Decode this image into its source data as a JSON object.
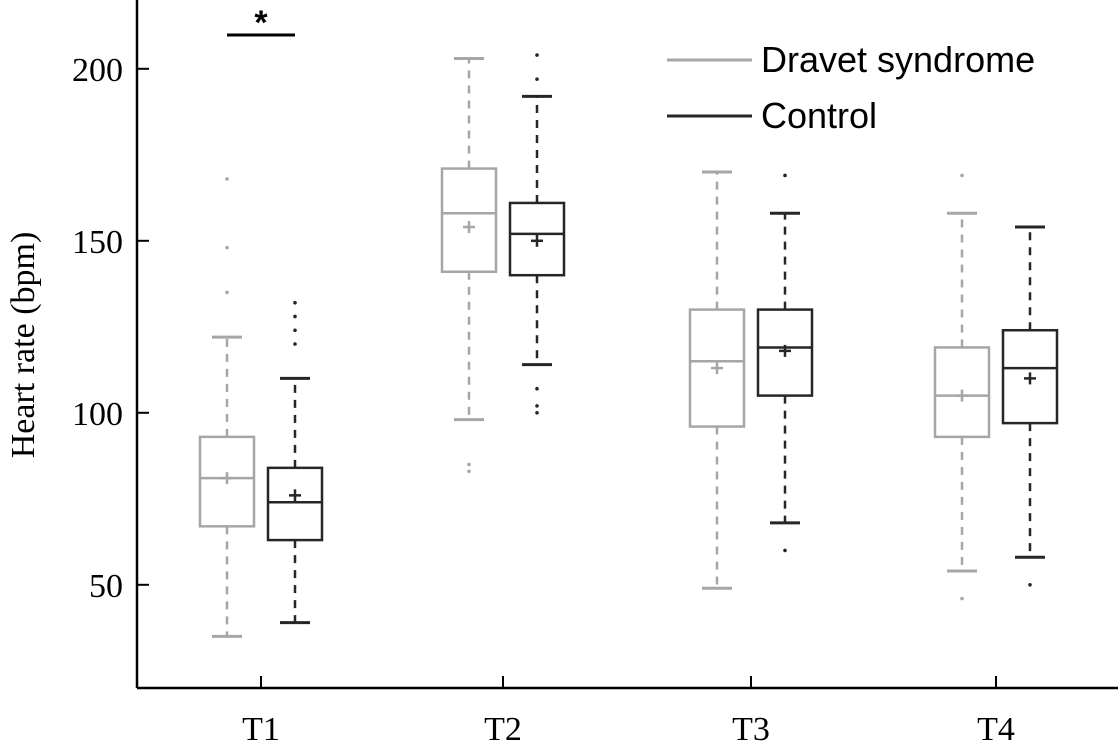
{
  "chart_data": {
    "type": "box",
    "categories": [
      "T1",
      "T2",
      "T3",
      "T4"
    ],
    "ylabel": "Heart rate (bpm)",
    "xlabel": "",
    "ylim": [
      20,
      220
    ],
    "yticks": [
      50,
      100,
      150,
      200
    ],
    "grid": false,
    "legend_position": "top-right",
    "significance": [
      {
        "category": "T1",
        "label": "*"
      }
    ],
    "series": [
      {
        "name": "Dravet syndrome",
        "color": "#a6a6a6",
        "boxes": [
          {
            "whisker_low": 35,
            "q1": 67,
            "median": 81,
            "q3": 93,
            "whisker_high": 122,
            "mean": 81,
            "outliers": [
              135,
              148,
              168
            ]
          },
          {
            "whisker_low": 98,
            "q1": 141,
            "median": 158,
            "q3": 171,
            "whisker_high": 203,
            "mean": 154,
            "outliers": [
              83,
              85
            ]
          },
          {
            "whisker_low": 49,
            "q1": 96,
            "median": 115,
            "q3": 130,
            "whisker_high": 170,
            "mean": 113,
            "outliers": []
          },
          {
            "whisker_low": 54,
            "q1": 93,
            "median": 105,
            "q3": 119,
            "whisker_high": 158,
            "mean": 105,
            "outliers": [
              46,
              169
            ]
          }
        ]
      },
      {
        "name": "Control",
        "color": "#262626",
        "boxes": [
          {
            "whisker_low": 39,
            "q1": 63,
            "median": 74,
            "q3": 84,
            "whisker_high": 110,
            "mean": 76,
            "outliers": [
              120,
              124,
              128,
              132
            ]
          },
          {
            "whisker_low": 114,
            "q1": 140,
            "median": 152,
            "q3": 161,
            "whisker_high": 192,
            "mean": 150,
            "outliers": [
              100,
              102,
              107,
              197,
              204
            ]
          },
          {
            "whisker_low": 68,
            "q1": 105,
            "median": 119,
            "q3": 130,
            "whisker_high": 158,
            "mean": 118,
            "outliers": [
              60,
              169
            ]
          },
          {
            "whisker_low": 58,
            "q1": 97,
            "median": 113,
            "q3": 124,
            "whisker_high": 154,
            "mean": 110,
            "outliers": [
              50
            ]
          }
        ]
      }
    ]
  }
}
